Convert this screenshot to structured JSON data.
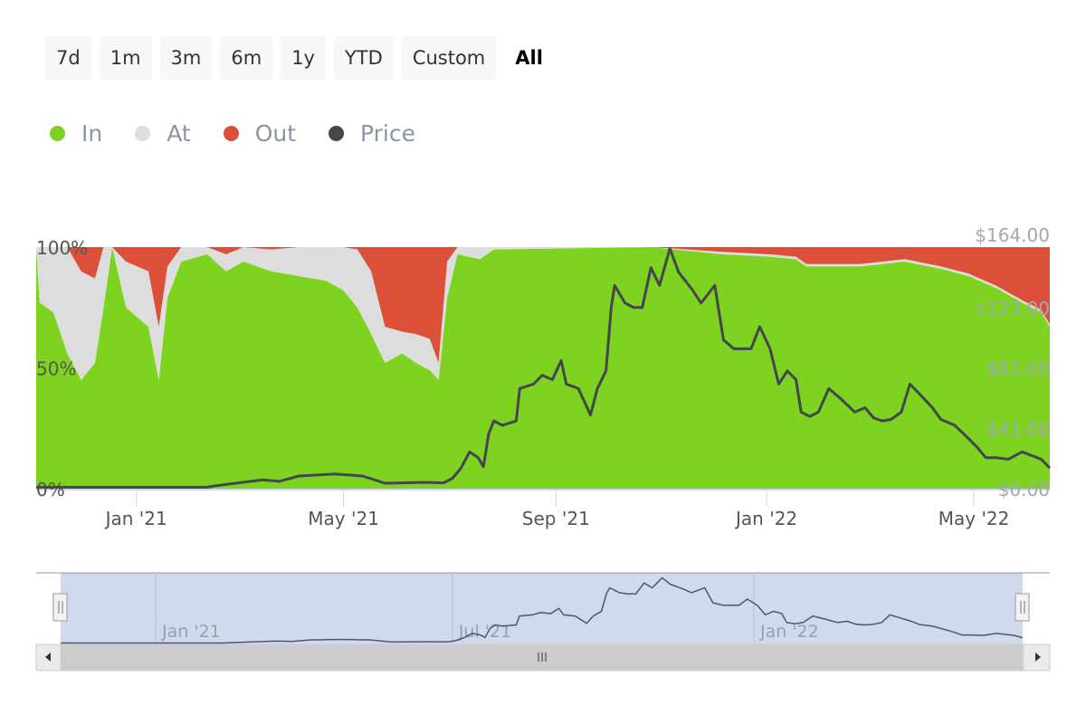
{
  "range_selector": {
    "buttons": [
      "7d",
      "1m",
      "3m",
      "6m",
      "1y",
      "YTD",
      "Custom",
      "All"
    ],
    "active": "All"
  },
  "legend": [
    {
      "label": "In",
      "color": "#7ed321"
    },
    {
      "label": "At",
      "color": "#dddddd"
    },
    {
      "label": "Out",
      "color": "#dc5039"
    },
    {
      "label": "Price",
      "color": "#43464b"
    }
  ],
  "chart_data": {
    "type": "area",
    "stacking": "percent",
    "x_range": [
      "2020-11-04",
      "2022-06-14"
    ],
    "x_ticks": [
      {
        "date": "2021-01-01",
        "label": "Jan '21"
      },
      {
        "date": "2021-05-01",
        "label": "May '21"
      },
      {
        "date": "2021-09-01",
        "label": "Sep '21"
      },
      {
        "date": "2022-01-01",
        "label": "Jan '22"
      },
      {
        "date": "2022-05-01",
        "label": "May '22"
      }
    ],
    "y_left": {
      "range": [
        0,
        100
      ],
      "ticks": [
        {
          "v": 0,
          "label": "0%"
        },
        {
          "v": 50,
          "label": "50%"
        },
        {
          "v": 100,
          "label": "100%"
        }
      ]
    },
    "y_right": {
      "range": [
        0,
        164
      ],
      "ticks": [
        {
          "v": 0,
          "label": "$0.00"
        },
        {
          "v": 41,
          "label": "$41.00"
        },
        {
          "v": 82,
          "label": "$82.00"
        },
        {
          "v": 123,
          "label": "$123.00"
        },
        {
          "v": 164,
          "label": "$164.00"
        }
      ]
    },
    "holdings": {
      "dates": [
        "2020-11-04",
        "2020-11-06",
        "2020-11-14",
        "2020-11-22",
        "2020-11-30",
        "2020-12-08",
        "2020-12-13",
        "2020-12-18",
        "2020-12-26",
        "2021-01-08",
        "2021-01-14",
        "2021-01-19",
        "2021-01-27",
        "2021-02-11",
        "2021-02-22",
        "2021-03-04",
        "2021-03-20",
        "2021-04-05",
        "2021-04-21",
        "2021-05-01",
        "2021-05-09",
        "2021-05-17",
        "2021-05-25",
        "2021-06-04",
        "2021-06-12",
        "2021-06-20",
        "2021-06-25",
        "2021-06-30",
        "2021-07-06",
        "2021-07-19",
        "2021-07-27",
        "2021-10-26",
        "2021-12-07",
        "2022-01-03",
        "2022-01-18",
        "2022-01-24",
        "2022-02-24",
        "2022-03-22",
        "2022-04-12",
        "2022-04-28",
        "2022-05-14",
        "2022-05-29",
        "2022-06-09",
        "2022-06-14"
      ],
      "series": [
        {
          "name": "In",
          "color": "#7ed321",
          "values": [
            100,
            77,
            73,
            56,
            45,
            52,
            75,
            100,
            75,
            67,
            45,
            79,
            94,
            97,
            90,
            94,
            90,
            88,
            86,
            82,
            75,
            64,
            52,
            56,
            52,
            49,
            45,
            79,
            97,
            95,
            99,
            100,
            97,
            96,
            95,
            92,
            92,
            94,
            91,
            88,
            83,
            77,
            73,
            67
          ]
        },
        {
          "name": "At",
          "color": "#dddddd",
          "values": [
            0,
            23,
            27,
            44,
            45,
            35,
            25,
            0,
            19,
            23,
            22,
            13,
            6,
            3,
            7,
            6,
            9,
            12,
            14,
            18,
            24,
            26,
            15,
            9,
            12,
            13,
            7,
            15,
            3,
            5,
            1,
            0,
            1,
            1,
            1,
            1,
            1,
            1,
            1,
            1,
            1,
            1,
            1,
            1
          ]
        },
        {
          "name": "Out",
          "color": "#dc5039",
          "values": [
            0,
            0,
            0,
            0,
            10,
            13,
            0,
            0,
            6,
            10,
            33,
            8,
            0,
            0,
            3,
            0,
            1,
            0,
            0,
            0,
            1,
            10,
            33,
            35,
            36,
            38,
            48,
            6,
            0,
            0,
            0,
            0,
            2,
            3,
            4,
            7,
            7,
            5,
            8,
            11,
            16,
            22,
            26,
            32
          ]
        }
      ]
    },
    "price": {
      "name": "Price",
      "color": "#43464b",
      "axis": "right",
      "dates": [
        "2020-11-04",
        "2021-01-01",
        "2021-02-11",
        "2021-02-16",
        "2021-03-15",
        "2021-03-25",
        "2021-04-05",
        "2021-04-26",
        "2021-05-12",
        "2021-05-25",
        "2021-06-17",
        "2021-06-28",
        "2021-07-03",
        "2021-07-08",
        "2021-07-13",
        "2021-07-18",
        "2021-07-21",
        "2021-07-24",
        "2021-07-27",
        "2021-08-01",
        "2021-08-09",
        "2021-08-11",
        "2021-08-19",
        "2021-08-24",
        "2021-08-30",
        "2021-09-04",
        "2021-09-07",
        "2021-09-14",
        "2021-09-21",
        "2021-09-25",
        "2021-09-30",
        "2021-10-03",
        "2021-10-05",
        "2021-10-11",
        "2021-10-16",
        "2021-10-21",
        "2021-10-26",
        "2021-10-31",
        "2021-11-06",
        "2021-11-11",
        "2021-11-19",
        "2021-11-24",
        "2021-12-02",
        "2021-12-07",
        "2021-12-13",
        "2021-12-23",
        "2021-12-28",
        "2022-01-03",
        "2022-01-08",
        "2022-01-13",
        "2022-01-18",
        "2022-01-21",
        "2022-01-26",
        "2022-01-31",
        "2022-02-06",
        "2022-02-13",
        "2022-02-21",
        "2022-02-27",
        "2022-03-04",
        "2022-03-09",
        "2022-03-14",
        "2022-03-20",
        "2022-03-25",
        "2022-03-30",
        "2022-04-07",
        "2022-04-12",
        "2022-04-20",
        "2022-04-28",
        "2022-05-03",
        "2022-05-08",
        "2022-05-14",
        "2022-05-21",
        "2022-05-29",
        "2022-06-09",
        "2022-06-14"
      ],
      "values": [
        1,
        1,
        1,
        2,
        6,
        5,
        8.6,
        10,
        8.6,
        3.7,
        4.3,
        4,
        7,
        14,
        25,
        21,
        15,
        37,
        46,
        43,
        46,
        68,
        71,
        77,
        74,
        87,
        71,
        68,
        50,
        68,
        80,
        123,
        138,
        126,
        123,
        123,
        150,
        138,
        163,
        147,
        135,
        126,
        138,
        101,
        95,
        95,
        110,
        95,
        71,
        80,
        74,
        52,
        49,
        52,
        68,
        61,
        52,
        55,
        48,
        46,
        47,
        52,
        71,
        65,
        55,
        47,
        43,
        34,
        28,
        21,
        21,
        20,
        25,
        20,
        14
      ]
    },
    "navigator": {
      "x_ticks": [
        {
          "date": "2021-01-01",
          "label": "Jan '21"
        },
        {
          "date": "2021-07-01",
          "label": "Jul '21"
        },
        {
          "date": "2022-01-01",
          "label": "Jan '22"
        }
      ],
      "selected_range": [
        "2020-11-04",
        "2022-06-14"
      ]
    },
    "grid": false,
    "legend_position": "top-left"
  }
}
